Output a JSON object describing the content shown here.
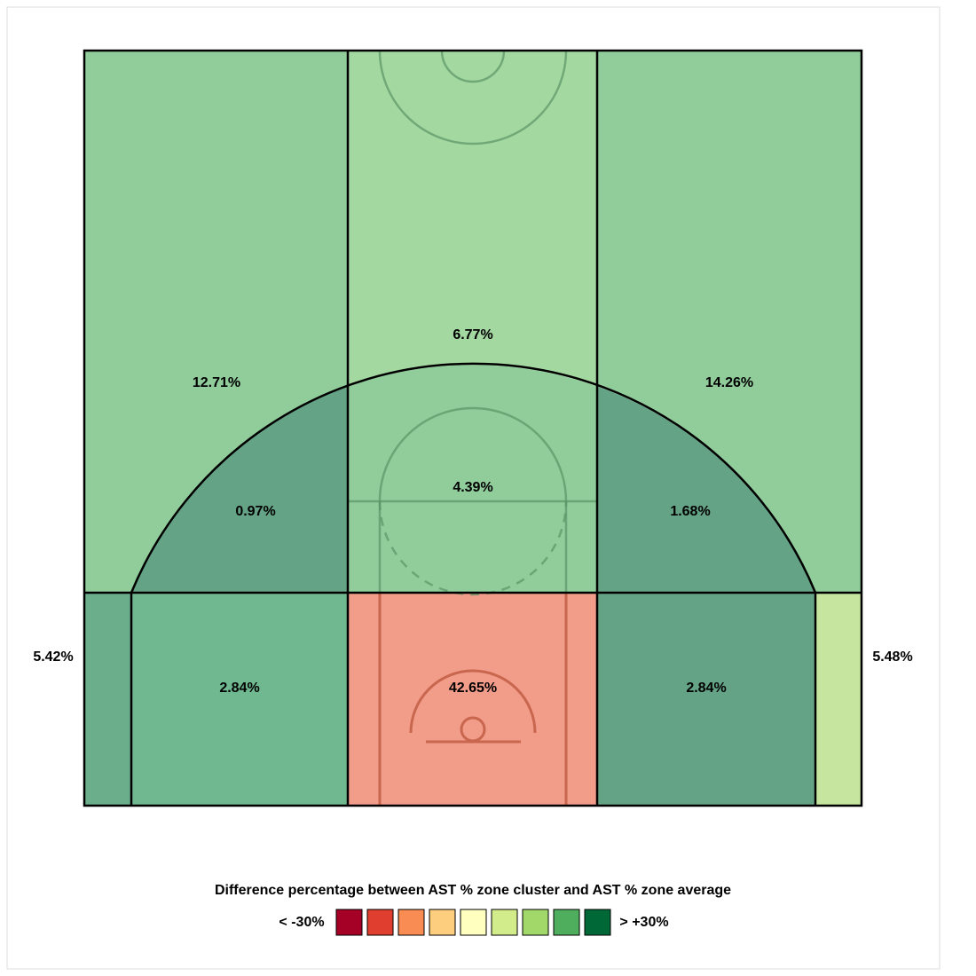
{
  "chart_data": {
    "type": "shot-zones",
    "values": [
      12.71,
      6.77,
      14.26,
      0.97,
      4.39,
      1.68,
      5.42,
      2.84,
      42.65,
      2.84,
      5.48
    ],
    "value_labels": [
      "12.71%",
      "6.77%",
      "14.26%",
      "0.97%",
      "4.39%",
      "1.68%",
      "5.42%",
      "2.84%",
      "42.65%",
      "2.84%",
      "5.48%"
    ],
    "colors": [
      "#90cd9b",
      "#a3d8a0",
      "#90cd9b",
      "#65a386",
      "#90cd9b",
      "#65a386",
      "#6aae8c",
      "#6fb890",
      "#f29c8a",
      "#65a386",
      "#c6e6a0"
    ],
    "legend": {
      "title": "Difference percentage between AST % zone cluster and AST % zone average",
      "low_label": "< -30%",
      "high_label": "> +30%",
      "colors": [
        "#a50026",
        "#e03e2e",
        "#f88c52",
        "#fdce7d",
        "#ffffbf",
        "#d3ec8b",
        "#a2d769",
        "#4fae5e",
        "#006837"
      ]
    }
  }
}
